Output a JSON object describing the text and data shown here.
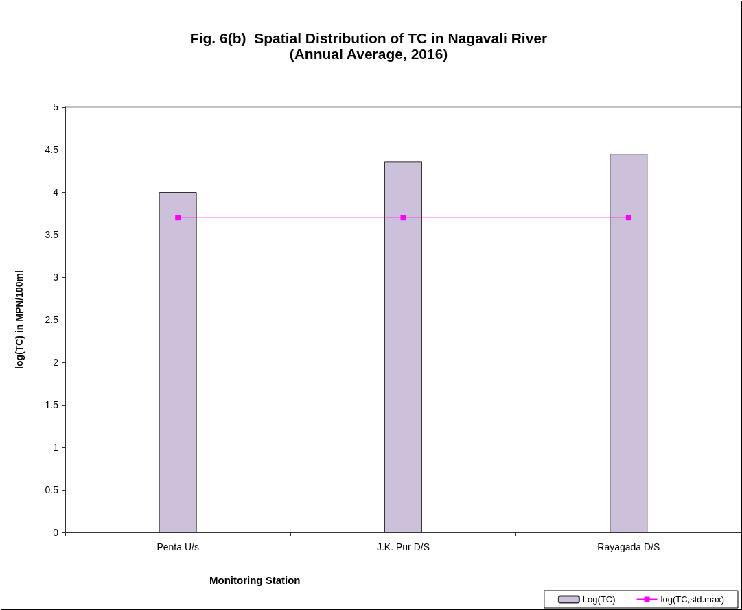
{
  "chart_data": {
    "type": "bar",
    "title": "Fig. 6(b)  Spatial Distribution of TC in Nagavali River",
    "subtitle": "(Annual Average, 2016)",
    "xlabel": "Monitoring Station",
    "ylabel": "log(TC) in MPN/100ml",
    "categories": [
      "Penta U/s",
      "J.K. Pur D/S",
      "Rayagada D/S"
    ],
    "series": [
      {
        "name": "Log(TC)",
        "color": "#ccc0da",
        "values": [
          4.0,
          4.36,
          4.45
        ]
      },
      {
        "name": "log(TC,std.max)",
        "type": "line",
        "color": "#ff00ff",
        "marker": "square",
        "values": [
          3.7,
          3.7,
          3.7
        ]
      }
    ],
    "ylim": [
      0,
      5
    ],
    "yticks": [
      0,
      0.5,
      1,
      1.5,
      2,
      2.5,
      3,
      3.5,
      4,
      4.5,
      5
    ],
    "grid": false,
    "legend": "bottom right"
  }
}
